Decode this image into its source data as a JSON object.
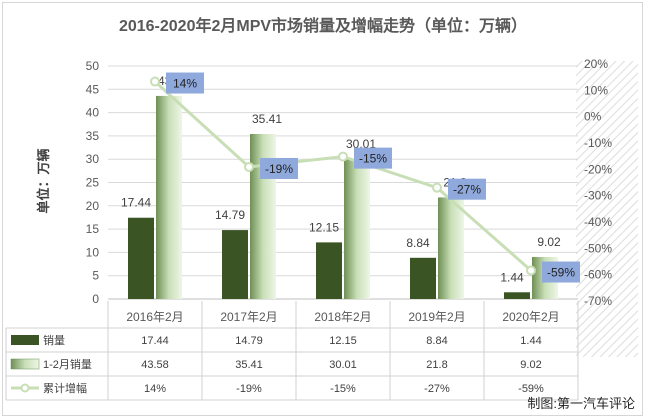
{
  "chart_data": {
    "type": "bar",
    "title": "2016-2020年2月MPV市场销量及增幅走势（单位：万辆）",
    "ylabel": "单位：万辆",
    "ylim": [
      0,
      50
    ],
    "y_ticks": [
      "50",
      "45",
      "40",
      "35",
      "30",
      "25",
      "20",
      "15",
      "10",
      "5",
      "0"
    ],
    "y2lim": [
      -70,
      20
    ],
    "y2_ticks": [
      "20%",
      "10%",
      "0%",
      "-10%",
      "-20%",
      "-30%",
      "-40%",
      "-50%",
      "-60%",
      "-70%"
    ],
    "categories": [
      "2016年2月",
      "2017年2月",
      "2018年2月",
      "2019年2月",
      "2020年2月"
    ],
    "series": [
      {
        "name": "销量",
        "type": "bar",
        "color": "#3a5423",
        "values": [
          17.44,
          14.79,
          12.15,
          8.84,
          1.44
        ],
        "labels": [
          "17.44",
          "14.79",
          "12.15",
          "8.84",
          "1.44"
        ]
      },
      {
        "name": "1-2月销量",
        "type": "bar",
        "color": "#9dbb87",
        "values": [
          43.58,
          35.41,
          30.01,
          21.8,
          9.02
        ],
        "labels": [
          "43.58",
          "35.41",
          "30.01",
          "21.8",
          "9.02"
        ]
      },
      {
        "name": "累计增幅",
        "type": "line",
        "axis": "right",
        "color": "#c8dfb6",
        "values": [
          14,
          -19,
          -15,
          -27,
          -59
        ],
        "labels": [
          "14%",
          "-19%",
          "-15%",
          "-27%",
          "-59%"
        ]
      }
    ],
    "grid": true,
    "legend": "data-table"
  },
  "footer": "制图:第一汽车评论"
}
